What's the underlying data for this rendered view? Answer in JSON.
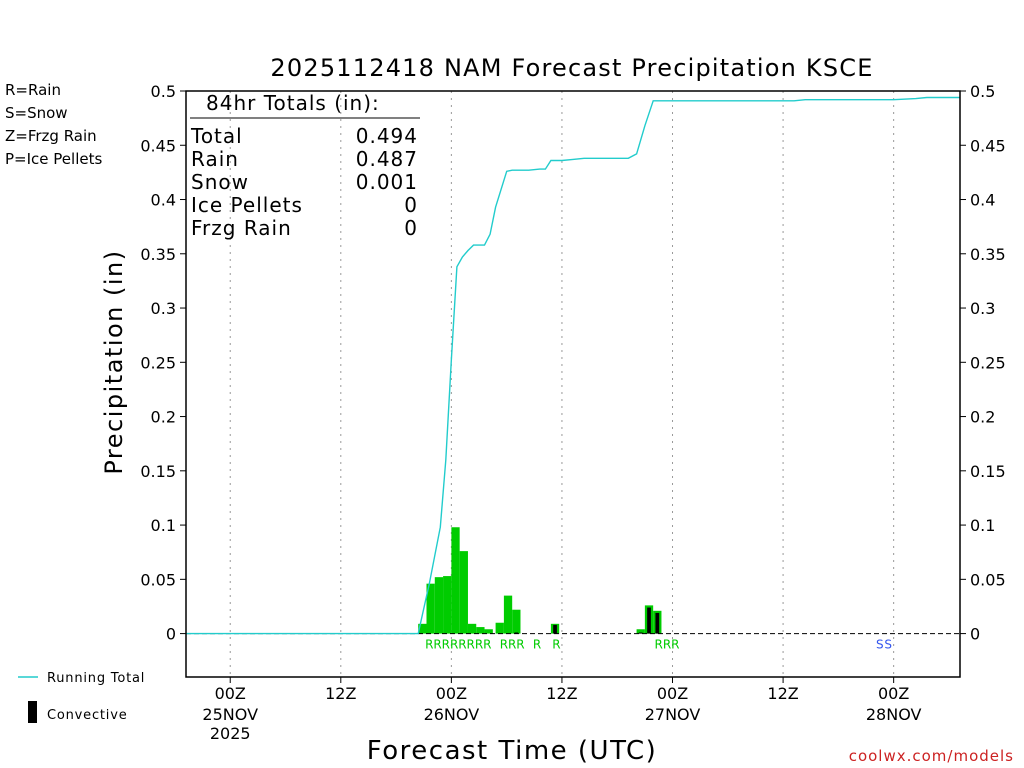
{
  "chart_data": {
    "type": "bar+line",
    "title": "2025112418 NAM Forecast Precipitation KSCE",
    "xlabel": "Forecast Time (UTC)",
    "ylabel": "Precipitation (in)",
    "ylim": [
      -0.04,
      0.5
    ],
    "xlim_hours": [
      -4,
      66
    ],
    "y_ticks": [
      "0.5",
      "0.45",
      "0.4",
      "0.35",
      "0.3",
      "0.25",
      "0.2",
      "0.15",
      "0.1",
      "0.05",
      "0"
    ],
    "y_tick_values": [
      0.5,
      0.45,
      0.4,
      0.35,
      0.3,
      0.25,
      0.2,
      0.15,
      0.1,
      0.05,
      0
    ],
    "x_ticks": [
      {
        "hour": 0,
        "label": "00Z",
        "date": "25NOV",
        "year": "2025"
      },
      {
        "hour": 10,
        "label": "12Z",
        "date": "",
        "year": ""
      },
      {
        "hour": 20,
        "label": "00Z",
        "date": "26NOV",
        "year": ""
      },
      {
        "hour": 30,
        "label": "12Z",
        "date": "",
        "year": ""
      },
      {
        "hour": 40,
        "label": "00Z",
        "date": "27NOV",
        "year": ""
      },
      {
        "hour": 50,
        "label": "12Z",
        "date": "",
        "year": ""
      },
      {
        "hour": 60,
        "label": "00Z",
        "date": "28NOV",
        "year": ""
      }
    ],
    "totals_box": {
      "header": "84hr Totals (in):",
      "rows": [
        {
          "label": "Total",
          "value": "0.494"
        },
        {
          "label": "Rain",
          "value": "0.487"
        },
        {
          "label": "Snow",
          "value": "0.001"
        },
        {
          "label": "Ice Pellets",
          "value": "0"
        },
        {
          "label": "Frzg Rain",
          "value": "0"
        }
      ]
    },
    "type_legend": [
      {
        "text": "R=Rain",
        "color": "#33cc33"
      },
      {
        "text": "S=Snow",
        "color": "#3355ee"
      },
      {
        "text": "Z=Frzg Rain",
        "color": "#ee8833"
      },
      {
        "text": "P=Ice Pellets",
        "color": "#ee2299"
      }
    ],
    "bottom_legend": {
      "running_total": "Running Total",
      "convective": "Convective"
    },
    "credit": "coolwx.com/models",
    "colors": {
      "rain": "#00cc00",
      "running_total": "#22cccc",
      "convective": "#000000",
      "snow": "#3355ee"
    },
    "bars": [
      {
        "start": 18.0,
        "end": 18.0,
        "value": 0.002,
        "convective": 0
      },
      {
        "start": 17.0,
        "end": 17.75,
        "value": 0.009,
        "convective": 0
      },
      {
        "start": 17.75,
        "end": 18.5,
        "value": 0.046,
        "convective": 0
      },
      {
        "start": 18.5,
        "end": 19.25,
        "value": 0.052,
        "convective": 0
      },
      {
        "start": 19.25,
        "end": 20.0,
        "value": 0.053,
        "convective": 0
      },
      {
        "start": 20.0,
        "end": 20.75,
        "value": 0.098,
        "convective": 0
      },
      {
        "start": 20.75,
        "end": 21.5,
        "value": 0.076,
        "convective": 0
      },
      {
        "start": 21.5,
        "end": 22.25,
        "value": 0.009,
        "convective": 0
      },
      {
        "start": 22.25,
        "end": 23.0,
        "value": 0.006,
        "convective": 0
      },
      {
        "start": 23.0,
        "end": 23.75,
        "value": 0.004,
        "convective": 0
      },
      {
        "start": 24.0,
        "end": 24.75,
        "value": 0.01,
        "convective": 0
      },
      {
        "start": 24.75,
        "end": 25.5,
        "value": 0.035,
        "convective": 0
      },
      {
        "start": 25.5,
        "end": 26.25,
        "value": 0.022,
        "convective": 0.001
      },
      {
        "start": 29.0,
        "end": 29.75,
        "value": 0.009,
        "convective": 0.008
      },
      {
        "start": 36.75,
        "end": 37.5,
        "value": 0.004,
        "convective": 0.001
      },
      {
        "start": 37.5,
        "end": 38.25,
        "value": 0.026,
        "convective": 0.024
      },
      {
        "start": 38.25,
        "end": 39.0,
        "value": 0.021,
        "convective": 0.019
      }
    ],
    "running_total": {
      "x": [
        -4,
        17,
        18,
        19,
        19.5,
        20,
        20.5,
        21,
        21.5,
        22,
        23,
        23.5,
        24,
        25,
        25.5,
        27,
        28,
        28.5,
        29,
        30,
        31,
        32,
        33,
        34,
        36,
        36.75,
        37.5,
        38.25,
        39,
        45,
        48,
        51,
        52,
        54,
        60,
        62,
        63,
        66
      ],
      "y": [
        0,
        0,
        0.046,
        0.098,
        0.16,
        0.253,
        0.338,
        0.347,
        0.353,
        0.358,
        0.358,
        0.368,
        0.393,
        0.426,
        0.427,
        0.427,
        0.428,
        0.428,
        0.436,
        0.436,
        0.437,
        0.438,
        0.438,
        0.438,
        0.438,
        0.442,
        0.468,
        0.491,
        0.491,
        0.491,
        0.491,
        0.491,
        0.492,
        0.492,
        0.492,
        0.493,
        0.494,
        0.494
      ]
    },
    "type_markers": [
      {
        "hour": 18.0,
        "text": "R",
        "kind": "rain"
      },
      {
        "hour": 18.75,
        "text": "R",
        "kind": "rain"
      },
      {
        "hour": 19.5,
        "text": "R",
        "kind": "rain"
      },
      {
        "hour": 20.25,
        "text": "R",
        "kind": "rain"
      },
      {
        "hour": 21.0,
        "text": "R",
        "kind": "rain"
      },
      {
        "hour": 21.75,
        "text": "R",
        "kind": "rain"
      },
      {
        "hour": 22.5,
        "text": "R",
        "kind": "rain"
      },
      {
        "hour": 23.25,
        "text": "R",
        "kind": "rain"
      },
      {
        "hour": 24.75,
        "text": "R",
        "kind": "rain"
      },
      {
        "hour": 25.5,
        "text": "R",
        "kind": "rain"
      },
      {
        "hour": 26.25,
        "text": "R",
        "kind": "rain"
      },
      {
        "hour": 27.75,
        "text": "R",
        "kind": "rain"
      },
      {
        "hour": 29.5,
        "text": "R",
        "kind": "rain"
      },
      {
        "hour": 38.75,
        "text": "R",
        "kind": "rain"
      },
      {
        "hour": 39.5,
        "text": "R",
        "kind": "rain"
      },
      {
        "hour": 40.25,
        "text": "R",
        "kind": "rain"
      },
      {
        "hour": 58.75,
        "text": "S",
        "kind": "snow"
      },
      {
        "hour": 59.5,
        "text": "S",
        "kind": "snow"
      }
    ]
  }
}
